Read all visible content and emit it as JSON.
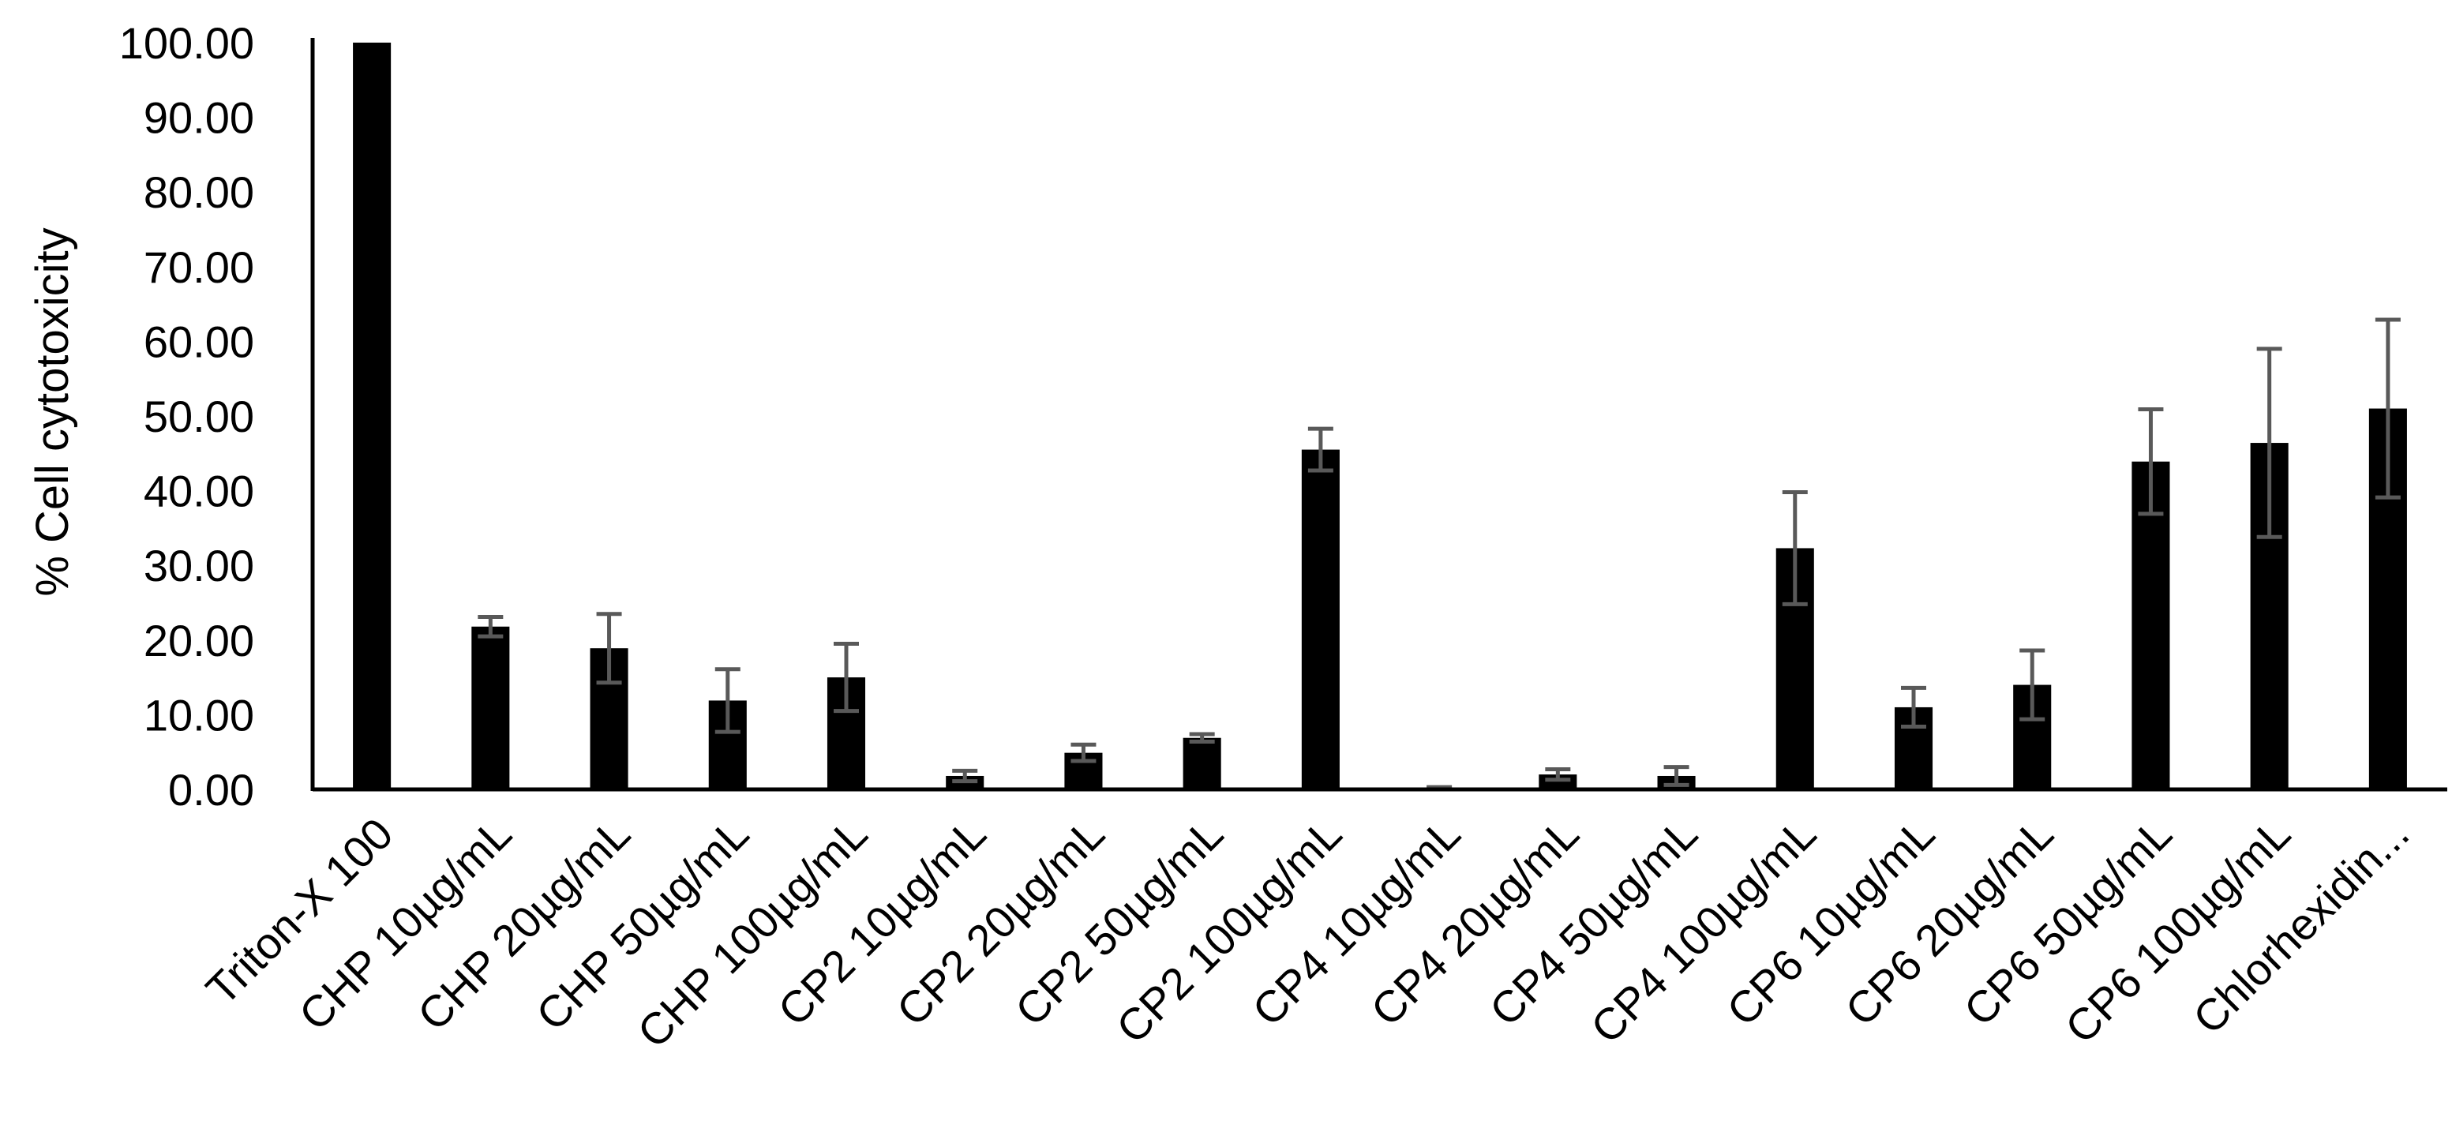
{
  "chart_data": {
    "type": "bar",
    "title": "",
    "xlabel": "",
    "ylabel": "% Cell cytotoxicity",
    "ylim": [
      0,
      100
    ],
    "yticks": [
      "0.00",
      "10.00",
      "20.00",
      "30.00",
      "40.00",
      "50.00",
      "60.00",
      "70.00",
      "80.00",
      "90.00",
      "100.00"
    ],
    "grid": false,
    "legend": "none",
    "bar_color": "#000000",
    "error_bar_color": "#595959",
    "categories": [
      "Triton-X 100",
      "CHP 10µg/mL",
      "CHP 20µg/mL",
      "CHP 50µg/mL",
      "CHP 100µg/mL",
      "CP2 10µg/mL",
      "CP2 20µg/mL",
      "CP2 50µg/mL",
      "CP2 100µg/mL",
      "CP4 10µg/mL",
      "CP4 20µg/mL",
      "CP4 50µg/mL",
      "CP4 100µg/mL",
      "CP6 10µg/mL",
      "CP6 20µg/mL",
      "CP6 50µg/mL",
      "CP6 100µg/mL",
      "Chlorhexidin..."
    ],
    "values": [
      100.0,
      21.8,
      18.9,
      11.9,
      15.0,
      1.8,
      4.9,
      6.9,
      45.5,
      0.2,
      2.0,
      1.8,
      32.3,
      11.0,
      14.0,
      43.9,
      46.4,
      51.0
    ],
    "errors": [
      0.0,
      1.3,
      4.6,
      4.2,
      4.5,
      0.7,
      1.1,
      0.5,
      2.8,
      0.1,
      0.7,
      1.2,
      7.5,
      2.6,
      4.6,
      7.0,
      12.6,
      11.9
    ]
  }
}
